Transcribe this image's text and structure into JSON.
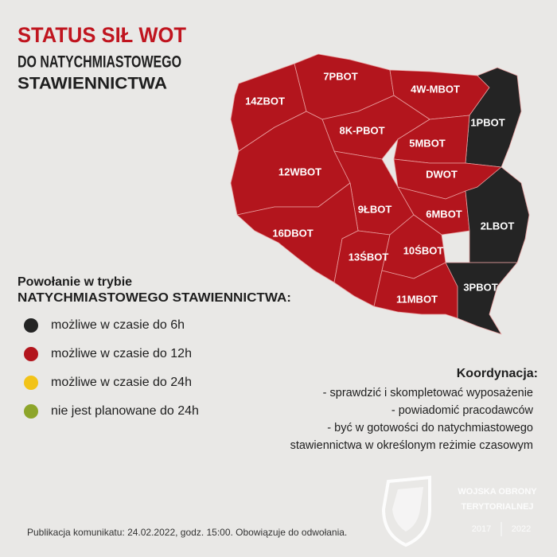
{
  "header": {
    "title": "STATUS SIŁ WOT",
    "subtitle_lines": [
      "DO NATYCHMIASTOWEGO",
      "STAWIENNICTWA"
    ]
  },
  "map": {
    "regions": [
      {
        "label": "14ZBOT",
        "color": "#b3151d"
      },
      {
        "label": "7PBOT",
        "color": "#b3151d"
      },
      {
        "label": "4W-MBOT",
        "color": "#b3151d"
      },
      {
        "label": "1PBOT",
        "color": "#242424"
      },
      {
        "label": "8K-PBOT",
        "color": "#b3151d"
      },
      {
        "label": "5MBOT",
        "color": "#b3151d"
      },
      {
        "label": "12WBOT",
        "color": "#b3151d"
      },
      {
        "label": "DWOT",
        "color": "#b3151d"
      },
      {
        "label": "9ŁBOT",
        "color": "#b3151d"
      },
      {
        "label": "6MBOT",
        "color": "#b3151d"
      },
      {
        "label": "2LBOT",
        "color": "#242424"
      },
      {
        "label": "16DBOT",
        "color": "#b3151d"
      },
      {
        "label": "13ŚBOT",
        "color": "#b3151d"
      },
      {
        "label": "10ŚBOT",
        "color": "#b3151d"
      },
      {
        "label": "11MBOT",
        "color": "#b3151d"
      },
      {
        "label": "3PBOT",
        "color": "#242424"
      }
    ]
  },
  "legend": {
    "heading_lines": [
      "Powołanie w trybie",
      "NATYCHMIASTOWEGO STAWIENNICTWA:"
    ],
    "items": [
      {
        "label": "możliwe w czasie do 6h",
        "color": "#242424"
      },
      {
        "label": "możliwe w czasie do 12h",
        "color": "#b3151d"
      },
      {
        "label": "możliwe w czasie do 24h",
        "color": "#f2c318"
      },
      {
        "label": "nie jest planowane do 24h",
        "color": "#8da52a"
      }
    ]
  },
  "coordination": {
    "heading": "Koordynacja:",
    "lines": [
      "- sprawdzić i skompletować wyposażenie",
      "- powiadomić pracodawców",
      "- być w gotowości do natychmiastowego",
      "stawiennictwa w określonym reżimie czasowym"
    ]
  },
  "logo": {
    "lines": [
      "WOJSKA OBRONY",
      "TERYTORIALNEJ"
    ],
    "years": [
      "2017",
      "2022"
    ]
  },
  "footer": "Publikacja komunikatu: 24.02.2022, godz. 15:00. Obowiązuje do odwołania."
}
